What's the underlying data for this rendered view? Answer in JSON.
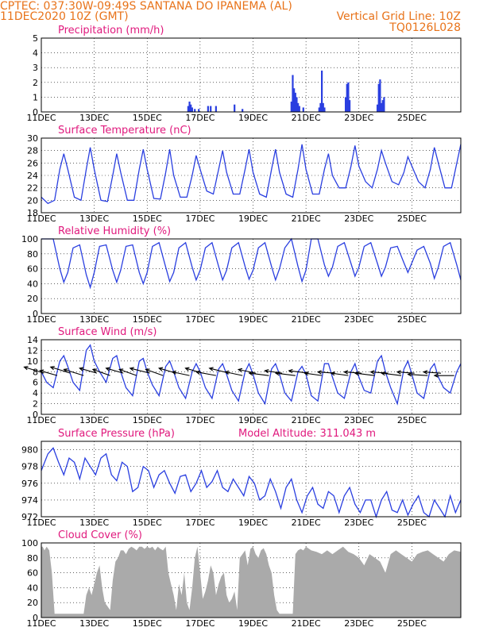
{
  "header": {
    "left_line1": "CPTEC:  037:30W-09:49S  SANTANA DO IPANEMA (AL)",
    "left_line2": "11DEC2020 10Z (GMT)",
    "right_line2": "Vertical Grid Line: 10Z",
    "right_line3": "TQ0126L028"
  },
  "x_ticks": [
    "11DEC",
    "13DEC",
    "15DEC",
    "17DEC",
    "19DEC",
    "21DEC",
    "23DEC",
    "25DEC"
  ],
  "colors": {
    "line": "#2a3fe0",
    "cloud": "#aaaaaa",
    "arrow": "#000000",
    "title": "#e0197d",
    "header": "#e8731a"
  },
  "chart_data": [
    {
      "id": "precip",
      "type": "bar",
      "title": "Precipitation (mm/h)",
      "x_units": "days since 11DEC 10Z",
      "ylim": [
        0,
        5
      ],
      "yticks": [
        0,
        1,
        2,
        3,
        4,
        5
      ],
      "x": [
        5.55,
        5.6,
        5.65,
        5.7,
        5.8,
        5.95,
        6.3,
        6.4,
        6.6,
        7.3,
        7.6,
        9.45,
        9.5,
        9.55,
        9.6,
        9.65,
        9.7,
        9.75,
        9.9,
        10.5,
        10.55,
        10.6,
        10.65,
        10.7,
        11.5,
        11.55,
        11.6,
        11.65,
        12.7,
        12.75,
        12.8,
        12.85,
        12.9,
        12.95
      ],
      "values": [
        0.4,
        0.7,
        0.5,
        0.3,
        0.2,
        0.2,
        0.4,
        0.4,
        0.4,
        0.5,
        0.2,
        0.7,
        2.5,
        1.6,
        1.3,
        1.0,
        0.6,
        0.4,
        0.3,
        0.3,
        0.6,
        2.8,
        0.6,
        0.3,
        1.0,
        1.9,
        2.0,
        0.8,
        0.5,
        1.9,
        2.2,
        0.6,
        0.8,
        1.0
      ]
    },
    {
      "id": "temp",
      "type": "line",
      "title": "Surface Temperature (nC)",
      "ylim": [
        18,
        30
      ],
      "yticks": [
        18,
        20,
        22,
        24,
        26,
        28,
        30
      ],
      "x": [
        0,
        0.25,
        0.5,
        0.7,
        0.85,
        1,
        1.25,
        1.5,
        1.7,
        1.85,
        2,
        2.25,
        2.5,
        2.7,
        2.85,
        3,
        3.25,
        3.5,
        3.7,
        3.85,
        4,
        4.25,
        4.5,
        4.7,
        4.85,
        5,
        5.25,
        5.5,
        5.7,
        5.85,
        6,
        6.25,
        6.5,
        6.7,
        6.85,
        7,
        7.25,
        7.5,
        7.7,
        7.85,
        8,
        8.25,
        8.5,
        8.7,
        8.85,
        9,
        9.25,
        9.5,
        9.7,
        9.85,
        10,
        10.25,
        10.5,
        10.7,
        10.85,
        11,
        11.25,
        11.5,
        11.7,
        11.85,
        12,
        12.25,
        12.5,
        12.7,
        12.85,
        13,
        13.25,
        13.5,
        13.7,
        13.85,
        14,
        14.25,
        14.5,
        14.7,
        14.85,
        15,
        15.25,
        15.5,
        15.7,
        15.85
      ],
      "y": [
        20.5,
        19.5,
        20,
        25,
        27.5,
        25,
        20.5,
        20,
        25,
        28.5,
        25,
        20,
        19.8,
        24,
        27.5,
        24.5,
        20,
        20,
        25,
        28.2,
        25,
        20.3,
        20.2,
        24.5,
        28.2,
        24,
        20.5,
        20.5,
        24,
        27.2,
        25,
        21.5,
        21,
        25,
        28,
        24.5,
        21,
        21,
        25,
        28.2,
        24.5,
        21,
        20.5,
        25,
        28.2,
        24.5,
        21,
        20.5,
        25,
        29,
        25,
        21,
        21,
        25,
        27.5,
        24,
        22,
        22,
        25.5,
        28.8,
        25.5,
        23,
        22,
        25,
        28,
        26,
        23,
        22.5,
        24.5,
        27,
        25.5,
        23,
        22,
        25,
        28.5,
        26,
        22,
        22,
        26,
        29
      ]
    },
    {
      "id": "rh",
      "type": "line",
      "title": "Relative Humidity (%)",
      "ylim": [
        0,
        100
      ],
      "yticks": [
        0,
        20,
        40,
        60,
        80,
        100
      ],
      "x": [
        0,
        0.2,
        0.45,
        0.7,
        0.85,
        1,
        1.2,
        1.45,
        1.7,
        1.85,
        2,
        2.2,
        2.45,
        2.7,
        2.85,
        3,
        3.2,
        3.45,
        3.7,
        3.85,
        4,
        4.2,
        4.45,
        4.7,
        4.85,
        5,
        5.2,
        5.45,
        5.7,
        5.85,
        6,
        6.2,
        6.45,
        6.7,
        6.85,
        7,
        7.2,
        7.45,
        7.7,
        7.85,
        8,
        8.2,
        8.45,
        8.7,
        8.85,
        9,
        9.2,
        9.45,
        9.7,
        9.85,
        10,
        10.2,
        10.45,
        10.7,
        10.85,
        11,
        11.2,
        11.45,
        11.7,
        11.85,
        12,
        12.2,
        12.45,
        12.7,
        12.85,
        13,
        13.2,
        13.45,
        13.7,
        13.85,
        14,
        14.2,
        14.45,
        14.7,
        14.85,
        15,
        15.2,
        15.45,
        15.7,
        15.85
      ],
      "y": [
        100,
        100,
        100,
        60,
        42,
        55,
        88,
        92,
        52,
        35,
        55,
        90,
        92,
        58,
        42,
        58,
        90,
        92,
        55,
        40,
        55,
        90,
        95,
        62,
        43,
        55,
        88,
        95,
        62,
        45,
        58,
        88,
        95,
        63,
        45,
        58,
        88,
        95,
        63,
        46,
        58,
        88,
        95,
        63,
        45,
        60,
        88,
        100,
        63,
        43,
        58,
        100,
        100,
        65,
        50,
        62,
        90,
        95,
        67,
        50,
        62,
        90,
        95,
        67,
        50,
        62,
        88,
        90,
        68,
        55,
        68,
        85,
        90,
        67,
        47,
        62,
        90,
        95,
        65,
        45
      ]
    },
    {
      "id": "wind",
      "type": "line",
      "title": "Surface Wind (m/s)",
      "ylim": [
        0,
        14
      ],
      "yticks": [
        0,
        2,
        4,
        6,
        8,
        10,
        12,
        14
      ],
      "x": [
        0,
        0.2,
        0.45,
        0.7,
        0.85,
        1,
        1.2,
        1.45,
        1.7,
        1.85,
        2,
        2.2,
        2.45,
        2.7,
        2.85,
        3,
        3.2,
        3.45,
        3.7,
        3.85,
        4,
        4.2,
        4.45,
        4.7,
        4.85,
        5,
        5.2,
        5.45,
        5.7,
        5.85,
        6,
        6.2,
        6.45,
        6.7,
        6.85,
        7,
        7.2,
        7.45,
        7.7,
        7.85,
        8,
        8.2,
        8.45,
        8.7,
        8.85,
        9,
        9.2,
        9.45,
        9.7,
        9.85,
        10,
        10.2,
        10.45,
        10.7,
        10.85,
        11,
        11.2,
        11.45,
        11.7,
        11.85,
        12,
        12.2,
        12.45,
        12.7,
        12.85,
        13,
        13.2,
        13.45,
        13.7,
        13.85,
        14,
        14.2,
        14.45,
        14.7,
        14.85,
        15,
        15.2,
        15.45,
        15.7,
        15.85
      ],
      "y": [
        8,
        6,
        5,
        10,
        11,
        9,
        6,
        4.5,
        12,
        13,
        10,
        8,
        6,
        10.5,
        11,
        8,
        5,
        3.5,
        10,
        10.5,
        8,
        5.5,
        3.5,
        9,
        10,
        8,
        5,
        3,
        8,
        9.5,
        8,
        5,
        3,
        8.5,
        9.5,
        7.5,
        4.5,
        2.5,
        8,
        9.5,
        7.5,
        4,
        2,
        8.5,
        9.5,
        7.5,
        4,
        2.5,
        8,
        9,
        7.5,
        3.5,
        2.5,
        9.5,
        9.5,
        7,
        4,
        3,
        8,
        9.5,
        7,
        4.5,
        4,
        10,
        11,
        8,
        5,
        2,
        8.5,
        10,
        7.5,
        4,
        3,
        8.5,
        9.5,
        7,
        5,
        4,
        8,
        9.5
      ],
      "barbs_x": [
        0.1,
        0.6,
        1.1,
        1.6,
        2.1,
        2.6,
        3.1,
        3.6,
        4.1,
        4.6,
        5.1,
        5.6,
        6.1,
        6.6,
        7.1,
        7.6,
        8.1,
        8.6,
        9.1,
        9.6,
        10.1,
        10.6,
        11.1,
        11.6,
        12.1,
        12.6,
        13.1,
        13.6,
        14.1,
        14.6,
        15.1,
        15.6
      ],
      "barbs_u": [
        -8,
        -7,
        -8,
        -8,
        -7,
        -7,
        -7,
        -7,
        -8,
        -7,
        -7,
        -7,
        -7,
        -8,
        -8,
        -7,
        -7,
        -8,
        -7,
        -8,
        -8,
        -7,
        -7,
        -7,
        -7,
        -8,
        -7,
        -8,
        -7,
        -8,
        -7,
        -8
      ],
      "barbs_v": [
        2.5,
        2,
        2.5,
        2.5,
        2,
        2.5,
        2,
        2.5,
        2,
        2.5,
        2,
        1.5,
        2,
        1.5,
        2,
        1.5,
        1.5,
        1,
        1,
        1,
        1,
        1,
        0.5,
        1,
        0.5,
        1,
        0.5,
        1,
        0.5,
        0.5,
        0.5,
        0
      ]
    },
    {
      "id": "press",
      "type": "line",
      "title": "Surface Pressure (hPa)",
      "annotation": "Model Altitude: 311.043 m",
      "ylim": [
        972,
        981
      ],
      "yticks": [
        972,
        974,
        976,
        978,
        980
      ],
      "x": [
        0,
        0.25,
        0.45,
        0.65,
        0.85,
        1.05,
        1.25,
        1.45,
        1.65,
        1.85,
        2.05,
        2.25,
        2.45,
        2.65,
        2.85,
        3.05,
        3.25,
        3.45,
        3.65,
        3.85,
        4.05,
        4.25,
        4.45,
        4.65,
        4.85,
        5.05,
        5.25,
        5.45,
        5.65,
        5.85,
        6.05,
        6.25,
        6.45,
        6.65,
        6.85,
        7.05,
        7.25,
        7.45,
        7.65,
        7.85,
        8.05,
        8.25,
        8.45,
        8.65,
        8.85,
        9.05,
        9.25,
        9.45,
        9.65,
        9.85,
        10.05,
        10.25,
        10.45,
        10.65,
        10.85,
        11.05,
        11.25,
        11.45,
        11.65,
        11.85,
        12.05,
        12.25,
        12.45,
        12.65,
        12.85,
        13.05,
        13.25,
        13.45,
        13.65,
        13.85,
        14.05,
        14.25,
        14.45,
        14.65,
        14.85,
        15.05,
        15.25,
        15.45,
        15.65,
        15.85
      ],
      "y": [
        977.5,
        979.5,
        980.2,
        978.5,
        977,
        979,
        978.5,
        976.5,
        979,
        978,
        977,
        979,
        979.5,
        977,
        976.3,
        978.5,
        978,
        975,
        975.5,
        978,
        977.5,
        975.5,
        977,
        977.5,
        976,
        974.8,
        976.8,
        977,
        975,
        976,
        977.5,
        975.5,
        976.2,
        977.5,
        975.5,
        975,
        976.5,
        975.5,
        974.5,
        976.8,
        976,
        974,
        974.5,
        976.5,
        975,
        973,
        975.5,
        976.5,
        974,
        972.5,
        974.5,
        975.5,
        973.5,
        973,
        975,
        974.5,
        972.5,
        974.5,
        975.5,
        973.5,
        972.5,
        974,
        974,
        972,
        974,
        975,
        972.8,
        972.5,
        974,
        972.2,
        973.5,
        974.5,
        972.5,
        972,
        974,
        973,
        972,
        974.5,
        972.5,
        974
      ]
    },
    {
      "id": "cloud",
      "type": "area",
      "title": "Cloud Cover (%)",
      "ylim": [
        0,
        100
      ],
      "yticks": [
        0,
        20,
        40,
        60,
        80,
        100
      ],
      "x": [
        0,
        0.05,
        0.12,
        0.2,
        0.3,
        0.4,
        0.5,
        0.55,
        0.6,
        0.65,
        0.7,
        0.75,
        0.8,
        0.9,
        1.0,
        1.1,
        1.2,
        1.3,
        1.4,
        1.5,
        1.6,
        1.7,
        1.8,
        1.9,
        2.0,
        2.1,
        2.2,
        2.3,
        2.4,
        2.5,
        2.6,
        2.7,
        2.8,
        2.9,
        3.0,
        3.1,
        3.2,
        3.3,
        3.4,
        3.5,
        3.6,
        3.7,
        3.8,
        3.9,
        4.0,
        4.1,
        4.2,
        4.3,
        4.4,
        4.5,
        4.6,
        4.7,
        4.8,
        4.9,
        5.0,
        5.1,
        5.2,
        5.3,
        5.4,
        5.5,
        5.6,
        5.7,
        5.8,
        5.9,
        6.0,
        6.1,
        6.2,
        6.3,
        6.4,
        6.5,
        6.6,
        6.7,
        6.8,
        6.9,
        7.0,
        7.1,
        7.2,
        7.3,
        7.4,
        7.5,
        7.6,
        7.7,
        7.8,
        7.9,
        8.0,
        8.1,
        8.2,
        8.3,
        8.4,
        8.5,
        8.6,
        8.7,
        8.8,
        8.9,
        9.0,
        9.1,
        9.2,
        9.3,
        9.4,
        9.5,
        9.6,
        9.7,
        9.8,
        9.9,
        10.0,
        10.2,
        10.4,
        10.6,
        10.8,
        11.0,
        11.2,
        11.4,
        11.6,
        11.8,
        12.0,
        12.2,
        12.4,
        12.6,
        12.8,
        13.0,
        13.2,
        13.4,
        13.6,
        13.8,
        14.0,
        14.2,
        14.4,
        14.6,
        14.8,
        15.0,
        15.2,
        15.4,
        15.6,
        15.85
      ],
      "values": [
        95,
        95,
        90,
        95,
        90,
        60,
        5,
        5,
        5,
        5,
        5,
        5,
        5,
        5,
        5,
        5,
        5,
        5,
        5,
        5,
        5,
        30,
        40,
        30,
        45,
        60,
        70,
        40,
        20,
        15,
        10,
        50,
        75,
        80,
        90,
        90,
        85,
        92,
        95,
        93,
        90,
        95,
        95,
        92,
        95,
        93,
        95,
        90,
        95,
        92,
        90,
        95,
        60,
        45,
        30,
        10,
        45,
        30,
        60,
        20,
        10,
        40,
        80,
        95,
        60,
        25,
        35,
        50,
        70,
        60,
        30,
        45,
        55,
        60,
        30,
        20,
        25,
        35,
        10,
        80,
        85,
        90,
        70,
        92,
        95,
        85,
        80,
        90,
        93,
        85,
        70,
        60,
        30,
        10,
        5,
        5,
        5,
        5,
        5,
        5,
        85,
        90,
        92,
        90,
        95,
        90,
        88,
        85,
        90,
        85,
        90,
        95,
        88,
        85,
        80,
        70,
        85,
        80,
        75,
        60,
        85,
        90,
        85,
        80,
        75,
        85,
        88,
        90,
        85,
        80,
        75,
        85,
        90,
        88
      ]
    }
  ]
}
